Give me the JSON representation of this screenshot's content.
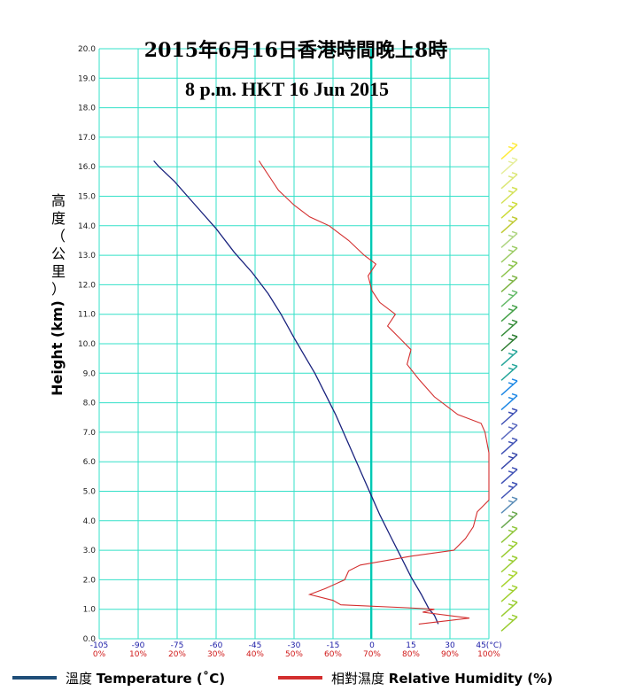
{
  "chart_data": {
    "type": "line",
    "title_cn": "2015年6月16日香港時間晚上8時",
    "title_en": "8 p.m. HKT 16 Jun 2015",
    "ylabel_cn": "高度（公里）",
    "ylabel_en": "Height (km)",
    "ylim": [
      0,
      20
    ],
    "y_ticks": [
      "0.0",
      "1.0",
      "2.0",
      "3.0",
      "4.0",
      "5.0",
      "6.0",
      "7.0",
      "8.0",
      "9.0",
      "10.0",
      "11.0",
      "12.0",
      "13.0",
      "14.0",
      "15.0",
      "16.0",
      "17.0",
      "18.0",
      "19.0",
      "20.0"
    ],
    "temperature_axis": {
      "range": [
        -105,
        45
      ],
      "tick_labels": [
        "-105",
        "-90",
        "-75",
        "-60",
        "-45",
        "-30",
        "-15",
        "0",
        "15",
        "30",
        "45(°C)"
      ]
    },
    "humidity_axis": {
      "range": [
        0,
        100
      ],
      "tick_labels": [
        "0%",
        "10%",
        "20%",
        "30%",
        "40%",
        "50%",
        "60%",
        "70%",
        "80%",
        "90%",
        "100%"
      ]
    },
    "grid": true,
    "series": [
      {
        "name": "溫度 Temperature (˚C)",
        "color": "#1a237e",
        "points": [
          [
            25.5,
            0.5
          ],
          [
            24,
            0.8
          ],
          [
            22,
            1.0
          ],
          [
            19,
            1.5
          ],
          [
            15,
            2.1
          ],
          [
            11,
            2.8
          ],
          [
            7,
            3.5
          ],
          [
            3,
            4.2
          ],
          [
            0,
            4.8
          ],
          [
            -3,
            5.4
          ],
          [
            -6,
            6.0
          ],
          [
            -10,
            6.8
          ],
          [
            -14,
            7.6
          ],
          [
            -18,
            8.3
          ],
          [
            -22,
            9.0
          ],
          [
            -26,
            9.6
          ],
          [
            -30,
            10.2
          ],
          [
            -35,
            11.0
          ],
          [
            -40,
            11.7
          ],
          [
            -46,
            12.4
          ],
          [
            -53,
            13.1
          ],
          [
            -60,
            13.9
          ],
          [
            -68,
            14.7
          ],
          [
            -76,
            15.5
          ],
          [
            -82,
            16.0
          ],
          [
            -84,
            16.2
          ]
        ]
      },
      {
        "name": "相對濕度 Relative Humidity (%)",
        "color": "#d32f2f",
        "points": [
          [
            82,
            0.5
          ],
          [
            95,
            0.7
          ],
          [
            83,
            0.9
          ],
          [
            86,
            1.0
          ],
          [
            79,
            1.05
          ],
          [
            62,
            1.15
          ],
          [
            60,
            1.3
          ],
          [
            54,
            1.5
          ],
          [
            58,
            1.7
          ],
          [
            63,
            2.0
          ],
          [
            64,
            2.3
          ],
          [
            67,
            2.5
          ],
          [
            80,
            2.8
          ],
          [
            91,
            3.0
          ],
          [
            94,
            3.4
          ],
          [
            96,
            3.8
          ],
          [
            97,
            4.3
          ],
          [
            100,
            4.7
          ],
          [
            100,
            5.5
          ],
          [
            100,
            6.3
          ],
          [
            99,
            7.0
          ],
          [
            98,
            7.3
          ],
          [
            92,
            7.6
          ],
          [
            86,
            8.2
          ],
          [
            82,
            8.8
          ],
          [
            79,
            9.3
          ],
          [
            80,
            9.8
          ],
          [
            77,
            10.2
          ],
          [
            74,
            10.6
          ],
          [
            76,
            11.0
          ],
          [
            72,
            11.4
          ],
          [
            70,
            11.8
          ],
          [
            69,
            12.3
          ],
          [
            71,
            12.7
          ],
          [
            68,
            13.0
          ],
          [
            64,
            13.5
          ],
          [
            59,
            14.0
          ],
          [
            54,
            14.3
          ],
          [
            50,
            14.7
          ],
          [
            46,
            15.2
          ],
          [
            44,
            15.6
          ],
          [
            42,
            16.0
          ],
          [
            41,
            16.2
          ]
        ]
      }
    ],
    "wind_barbs": {
      "heights_km": [
        0.5,
        1.0,
        1.5,
        2.0,
        2.5,
        3.0,
        3.5,
        4.0,
        4.5,
        5.0,
        5.5,
        6.0,
        6.5,
        7.0,
        7.5,
        8.0,
        8.5,
        9.0,
        9.5,
        10.0,
        10.5,
        11.0,
        11.5,
        12.0,
        12.5,
        13.0,
        13.5,
        14.0,
        14.5,
        15.0,
        15.5,
        16.0,
        16.5
      ],
      "colors": [
        "#9acd32",
        "#9acd32",
        "#a0d030",
        "#a8d42e",
        "#9acd32",
        "#9acd32",
        "#8fc63a",
        "#6aa84f",
        "#5b8db8",
        "#3f51b5",
        "#3f51b5",
        "#3949ab",
        "#3f51b5",
        "#5c6bc0",
        "#3f51b5",
        "#1e88e5",
        "#1e88e5",
        "#26a69a",
        "#26a69a",
        "#2e7d32",
        "#388e3c",
        "#43a047",
        "#66bb6a",
        "#7cb342",
        "#8bc34a",
        "#9ccc65",
        "#aed581",
        "#c0ca33",
        "#cddc39",
        "#d4e157",
        "#dce775",
        "#e6ee9c",
        "#ffeb3b"
      ]
    }
  },
  "legend": {
    "temperature_label": "溫度 ",
    "temperature_label_en": "Temperature (˚C)",
    "humidity_label": "相對濕度 ",
    "humidity_label_en": "Relative Humidity (%)",
    "temperature_color": "#1f4e79",
    "humidity_color": "#d32f2f"
  }
}
